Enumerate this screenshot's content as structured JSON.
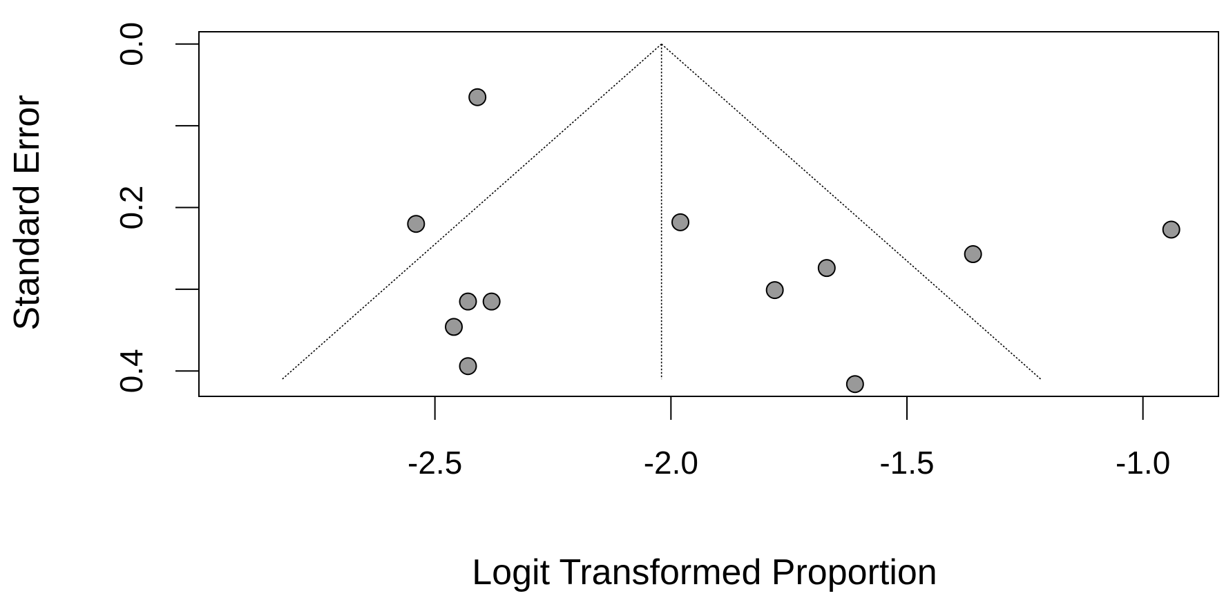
{
  "chart_data": {
    "type": "scatter",
    "subtype": "funnel",
    "xlabel": "Logit Transformed Proportion",
    "ylabel": "Standard Error",
    "xlim": [
      -3.0,
      -0.84
    ],
    "ylim": [
      0.431,
      -0.015
    ],
    "y_reversed": true,
    "x_ticks": [
      -2.5,
      -2.0,
      -1.5,
      -1.0
    ],
    "x_tick_labels": [
      "-2.5",
      "-2.0",
      "-1.5",
      "-1.0"
    ],
    "y_ticks": [
      0.0,
      0.1,
      0.2,
      0.3,
      0.4
    ],
    "y_tick_labels": [
      "0.0",
      "",
      "0.2",
      "",
      "0.4"
    ],
    "pooled_estimate": -2.02,
    "funnel_max_se": 0.41,
    "funnel_multiplier": 1.96,
    "points": [
      {
        "x": -2.41,
        "y": 0.065
      },
      {
        "x": -2.54,
        "y": 0.22
      },
      {
        "x": -1.98,
        "y": 0.218
      },
      {
        "x": -0.94,
        "y": 0.227
      },
      {
        "x": -1.36,
        "y": 0.257
      },
      {
        "x": -1.67,
        "y": 0.274
      },
      {
        "x": -1.78,
        "y": 0.301
      },
      {
        "x": -2.43,
        "y": 0.315
      },
      {
        "x": -2.38,
        "y": 0.315
      },
      {
        "x": -2.46,
        "y": 0.346
      },
      {
        "x": -2.43,
        "y": 0.394
      },
      {
        "x": -1.61,
        "y": 0.416
      }
    ],
    "colors": {
      "point_fill": "#999999",
      "point_stroke": "#000000",
      "line": "#000000"
    }
  }
}
